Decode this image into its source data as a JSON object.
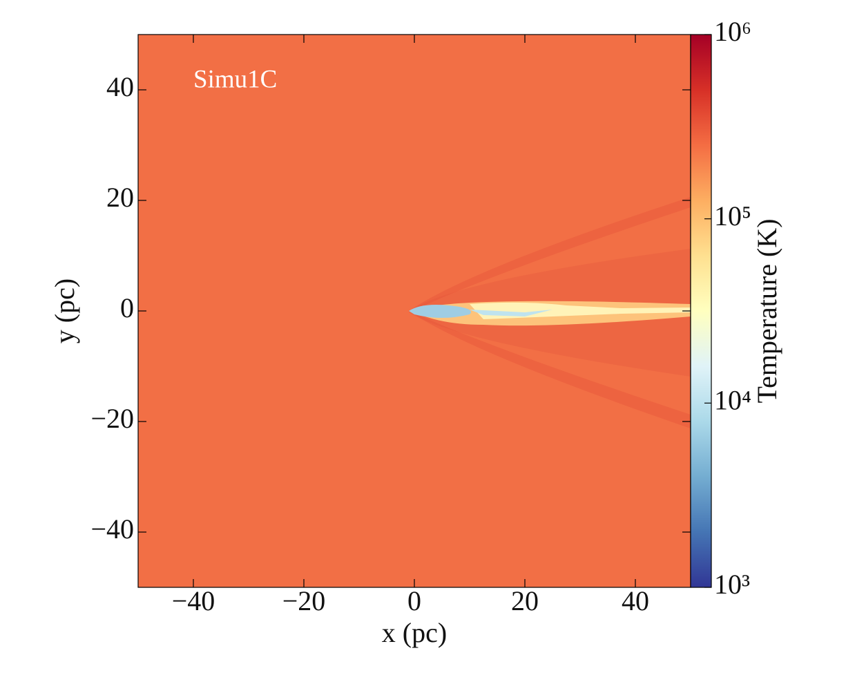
{
  "chart_data": {
    "type": "heatmap",
    "annotation": "Simu1C",
    "x_label": "x  (pc)",
    "y_label": "y  (pc)",
    "colorbar_label": "Temperature  (K)",
    "xlim": [
      -50,
      50
    ],
    "ylim": [
      -50,
      50
    ],
    "xticks": [
      {
        "value": -40,
        "label": "−40"
      },
      {
        "value": -20,
        "label": "−20"
      },
      0,
      20,
      40
    ],
    "yticks": [
      {
        "value": -40,
        "label": "−40"
      },
      {
        "value": -20,
        "label": "−20"
      },
      0,
      20,
      40
    ],
    "colorbar_log": true,
    "colorbar_lim": [
      1000,
      1000000
    ],
    "colorbar_ticks": [
      {
        "value": 1000,
        "label": "10³"
      },
      {
        "value": 10000,
        "label": "10⁴"
      },
      {
        "value": 100000,
        "label": "10⁵"
      },
      {
        "value": 1000000,
        "label": "10⁶"
      }
    ],
    "colormap": [
      "#313695",
      "#4575b4",
      "#74add1",
      "#abd9e9",
      "#e0f3f8",
      "#ffffbf",
      "#fee090",
      "#fdae61",
      "#f46d43",
      "#d73027",
      "#a50026"
    ],
    "field_color": "#f26f45"
  }
}
